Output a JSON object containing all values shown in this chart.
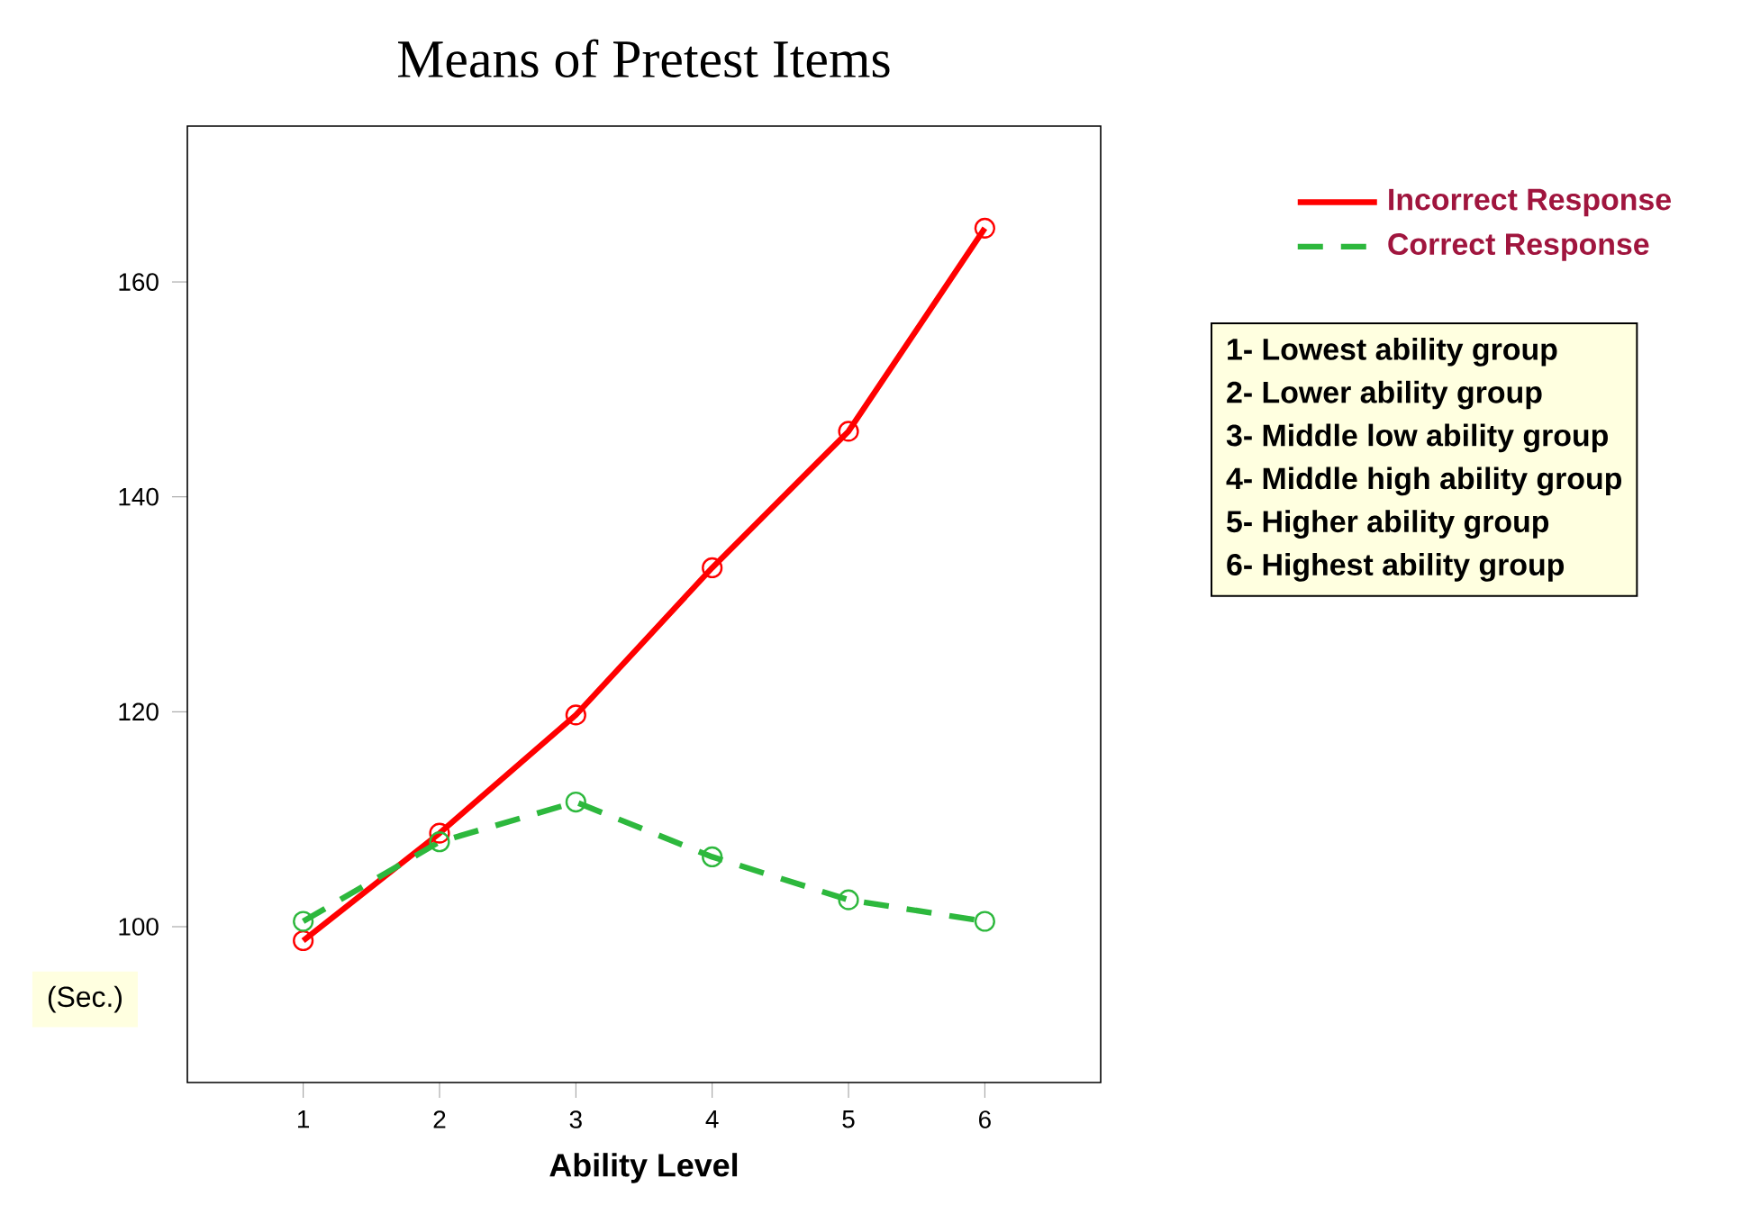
{
  "chart_data": {
    "type": "line",
    "title": "Means of Pretest Items",
    "xlabel": "Ability Level",
    "ylabel": "(Sec.)",
    "x": [
      1,
      2,
      3,
      4,
      5,
      6
    ],
    "series": [
      {
        "name": "Incorrect Response",
        "color": "#ff0000",
        "line_style": "solid",
        "values": [
          98.7,
          108.7,
          119.7,
          133.4,
          146.1,
          165.0
        ]
      },
      {
        "name": "Correct Response",
        "color": "#2db83d",
        "line_style": "dashed",
        "values": [
          100.5,
          107.9,
          111.6,
          106.5,
          102.5,
          100.5
        ]
      }
    ],
    "xlim": [
      0.15,
      6.85
    ],
    "ylim": [
      85.5,
      174.5
    ],
    "xticks": [
      1,
      2,
      3,
      4,
      5,
      6
    ],
    "yticks": [
      100,
      120,
      140,
      160
    ],
    "marker": "circle",
    "grid": false,
    "legend": "right",
    "annotations": [
      "1- Lowest ability group",
      "2- Lower ability group",
      "3- Middle low ability group",
      "4- Middle high ability group",
      "5- Higher ability group",
      "6- Highest ability group"
    ]
  }
}
